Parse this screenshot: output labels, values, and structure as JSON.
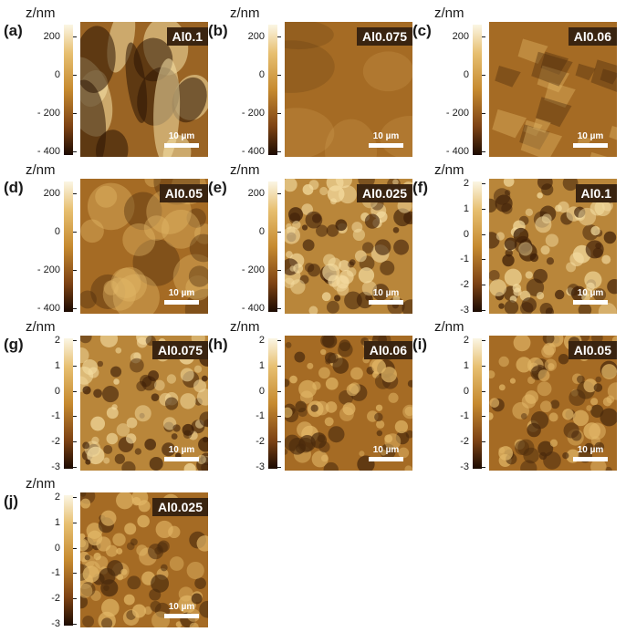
{
  "unit": "z/nm",
  "scale_bar": "10 µm",
  "scales": {
    "large": [
      "200",
      "0",
      "- 200",
      "- 400"
    ],
    "small": [
      "2",
      "1",
      "0",
      "-1",
      "-2",
      "-3"
    ]
  },
  "panels": [
    {
      "label": "(a)",
      "name": "Al0.1",
      "scale": "large",
      "texture": "ridged",
      "brightness": "mixed"
    },
    {
      "label": "(b)",
      "name": "Al0.075",
      "scale": "large",
      "texture": "smooth",
      "brightness": "mid"
    },
    {
      "label": "(c)",
      "name": "Al0.06",
      "scale": "large",
      "texture": "terraced",
      "brightness": "mid"
    },
    {
      "label": "(d)",
      "name": "Al0.05",
      "scale": "large",
      "texture": "cloudy",
      "brightness": "mid"
    },
    {
      "label": "(e)",
      "name": "Al0.025",
      "scale": "large",
      "texture": "granular",
      "brightness": "bright"
    },
    {
      "label": "(f)",
      "name": "Al0.1",
      "scale": "small",
      "texture": "granular",
      "brightness": "bright"
    },
    {
      "label": "(g)",
      "name": "Al0.075",
      "scale": "small",
      "texture": "granular",
      "brightness": "bright"
    },
    {
      "label": "(h)",
      "name": "Al0.06",
      "scale": "small",
      "texture": "granular",
      "brightness": "mid"
    },
    {
      "label": "(i)",
      "name": "Al0.05",
      "scale": "small",
      "texture": "granular",
      "brightness": "mid"
    },
    {
      "label": "(j)",
      "name": "Al0.025",
      "scale": "small",
      "texture": "granular",
      "brightness": "mid"
    }
  ]
}
